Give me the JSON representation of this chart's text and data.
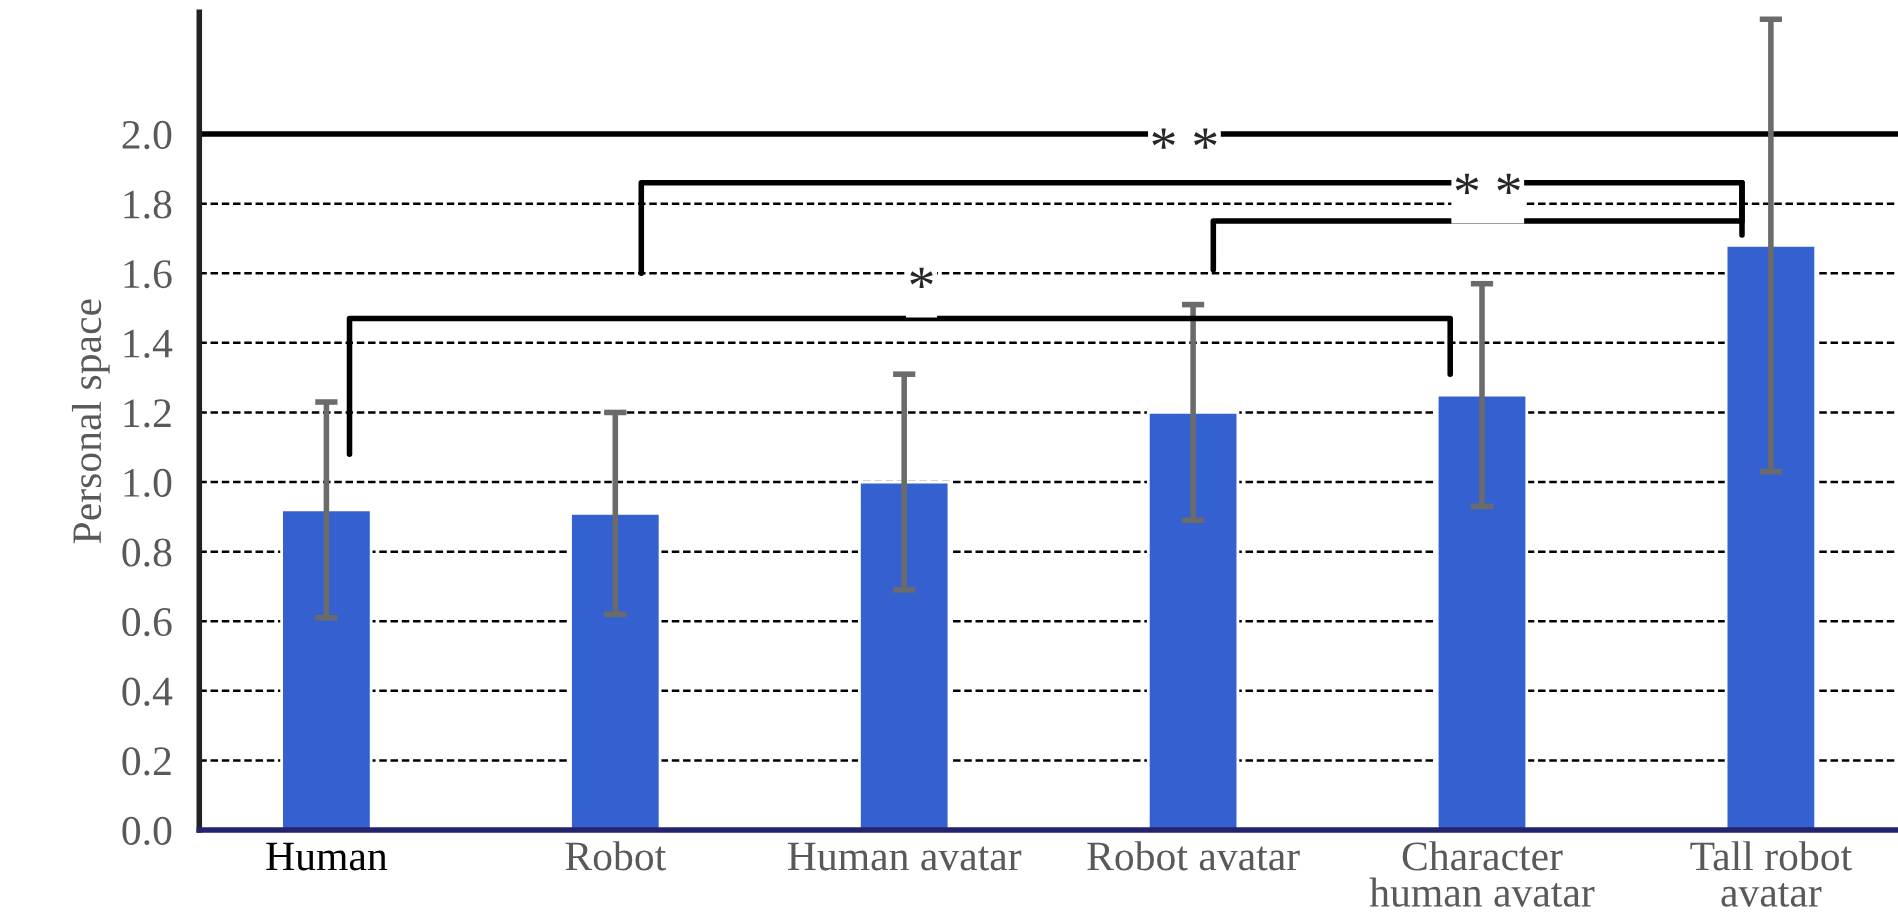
{
  "chart_data": {
    "type": "bar",
    "ylabel": "Personal space",
    "categories": [
      "Human",
      "Robot",
      "Human avatar",
      "Robot avatar",
      "Character\nhuman avatar",
      "Tall robot\navatar"
    ],
    "values": [
      0.92,
      0.91,
      1.0,
      1.2,
      1.25,
      1.68
    ],
    "errors": [
      0.31,
      0.29,
      0.31,
      0.31,
      0.32,
      0.65
    ],
    "color": "#3560d0",
    "ylim": [
      0,
      2.35
    ],
    "yticks": [
      {
        "value": 0,
        "label": "0.0"
      },
      0.2,
      0.4,
      0.6,
      0.8,
      {
        "value": 1,
        "label": "1.0"
      },
      1.2,
      1.4,
      1.6,
      1.8,
      {
        "value": 2,
        "label": "2.0"
      }
    ],
    "grid": "y",
    "legend": false,
    "ref_lines": [
      {
        "axis": "y",
        "value": 2,
        "color": "#000000",
        "line_style": "solid"
      }
    ],
    "annotations": [
      "*",
      "* *",
      "* *"
    ]
  }
}
